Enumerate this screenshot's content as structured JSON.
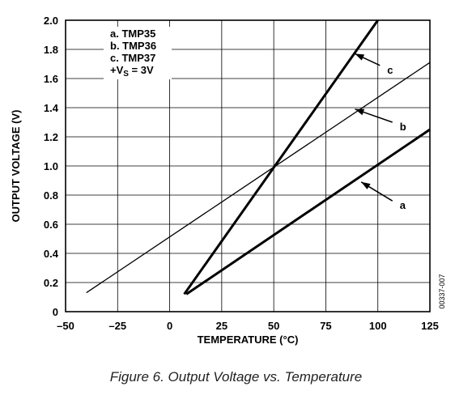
{
  "chart_data": {
    "type": "line",
    "xlabel": "TEMPERATURE (°C)",
    "ylabel": "OUTPUT VOLTAGE (V)",
    "xlim": [
      -50,
      125
    ],
    "ylim": [
      0,
      2.0
    ],
    "x_ticks": [
      "–50",
      "–25",
      "0",
      "25",
      "50",
      "75",
      "100",
      "125"
    ],
    "y_ticks": [
      "0",
      "0.2",
      "0.4",
      "0.6",
      "0.8",
      "1.0",
      "1.2",
      "1.4",
      "1.6",
      "1.8",
      "2.0"
    ],
    "grid": true,
    "legend": {
      "position": "top-left",
      "entries": [
        "a.  TMP35",
        "b.  TMP36",
        "c.  TMP37"
      ],
      "supply_prefix": "+V",
      "supply_sub": "S",
      "supply_suffix": " = 3V"
    },
    "series": [
      {
        "name": "a",
        "x": [
          8,
          125
        ],
        "y": [
          0.12,
          1.25
        ],
        "line": "thick",
        "arrow": {
          "from": [
            92,
            0.89
          ],
          "to": [
            107,
            0.76
          ]
        }
      },
      {
        "name": "b",
        "x": [
          -40,
          125
        ],
        "y": [
          0.13,
          1.71
        ],
        "line": "thin",
        "arrow": {
          "from": [
            89,
            1.39
          ],
          "to": [
            107,
            1.3
          ]
        }
      },
      {
        "name": "c",
        "x": [
          7,
          100
        ],
        "y": [
          0.12,
          2.0
        ],
        "line": "thick",
        "arrow": {
          "from": [
            89,
            1.77
          ],
          "to": [
            101,
            1.69
          ]
        }
      }
    ],
    "figure_code": "00337-007"
  },
  "caption": "Figure 6. Output Voltage vs. Temperature"
}
